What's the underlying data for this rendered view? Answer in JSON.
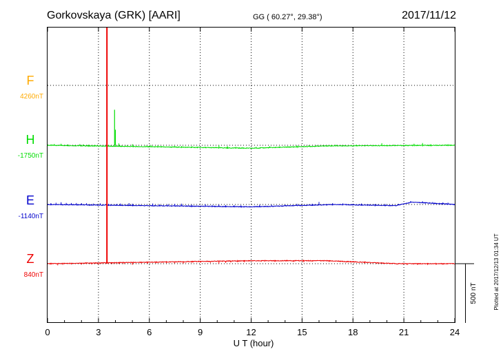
{
  "header": {
    "station": "Gorkovskaya (GRK)  [AARI]",
    "coords": "GG ( 60.27°,  29.38°)",
    "date": "2017/11/12"
  },
  "footer": {
    "plotted": "Plotted at 2017/12/13 01:34 UT"
  },
  "colors": {
    "F": "#ffaa00",
    "H": "#00dd00",
    "E": "#0000cc",
    "Z": "#ee0000",
    "marker": "#ee0000"
  },
  "chart_data": {
    "type": "line",
    "title": "",
    "xlabel": "U T (hour)",
    "ylabel": "",
    "xlim": [
      0,
      24
    ],
    "x_ticks": [
      0,
      3,
      6,
      9,
      12,
      15,
      18,
      21,
      24
    ],
    "x_tick_labels": [
      "0",
      "3",
      "6",
      "9",
      "12",
      "15",
      "18",
      "21",
      "24"
    ],
    "grid": true,
    "scale_bar": {
      "label": "500 nT",
      "value": 500
    },
    "marker_line_hour": 3.5,
    "channels": [
      {
        "name": "F",
        "baseline_label": "4260nT"
      },
      {
        "name": "H",
        "baseline_label": "-1750nT"
      },
      {
        "name": "E",
        "baseline_label": "-1140nT"
      },
      {
        "name": "Z",
        "baseline_label": "840nT"
      }
    ],
    "series": [
      {
        "name": "H",
        "base_shift": [
          [
            0,
            0
          ],
          [
            12,
            -25
          ],
          [
            16.5,
            -5
          ],
          [
            24,
            0
          ]
        ],
        "spikes": [
          [
            0.2,
            8
          ],
          [
            0.4,
            12
          ],
          [
            0.8,
            15
          ],
          [
            1.2,
            10
          ],
          [
            1.9,
            14
          ],
          [
            2.1,
            12
          ],
          [
            2.4,
            10
          ],
          [
            2.8,
            8
          ],
          [
            3.6,
            12
          ],
          [
            4.0,
            140
          ],
          [
            4.2,
            25
          ],
          [
            4.7,
            10
          ],
          [
            5.0,
            20
          ],
          [
            5.8,
            10
          ],
          [
            6.1,
            15
          ],
          [
            6.5,
            12
          ],
          [
            7.5,
            10
          ],
          [
            7.9,
            10
          ],
          [
            8.5,
            8
          ],
          [
            10.1,
            22
          ],
          [
            10.6,
            15
          ],
          [
            11.1,
            10
          ],
          [
            11.5,
            8
          ],
          [
            12.3,
            10
          ],
          [
            13.1,
            12
          ],
          [
            13.7,
            8
          ],
          [
            14.7,
            12
          ],
          [
            15.4,
            10
          ],
          [
            17.0,
            10
          ],
          [
            18.2,
            8
          ],
          [
            19.7,
            20
          ],
          [
            20.4,
            8
          ],
          [
            21.6,
            15
          ],
          [
            22.1,
            20
          ],
          [
            22.6,
            10
          ],
          [
            23.6,
            10
          ]
        ]
      },
      {
        "name": "E",
        "base_shift": [
          [
            0,
            0
          ],
          [
            12,
            -20
          ],
          [
            17,
            0
          ],
          [
            20.5,
            -10
          ],
          [
            21.5,
            20
          ],
          [
            24,
            0
          ]
        ],
        "spikes": [
          [
            0.2,
            12
          ],
          [
            0.5,
            15
          ],
          [
            0.8,
            20
          ],
          [
            1.1,
            15
          ],
          [
            1.4,
            15
          ],
          [
            1.7,
            15
          ],
          [
            2.0,
            15
          ],
          [
            2.3,
            15
          ],
          [
            2.7,
            12
          ],
          [
            3.1,
            15
          ],
          [
            3.6,
            12
          ],
          [
            4.1,
            12
          ],
          [
            4.3,
            15
          ],
          [
            4.8,
            20
          ],
          [
            5.0,
            15
          ],
          [
            6.2,
            18
          ],
          [
            6.6,
            12
          ],
          [
            7.1,
            15
          ],
          [
            7.5,
            18
          ],
          [
            7.9,
            20
          ],
          [
            8.5,
            12
          ],
          [
            9.3,
            18
          ],
          [
            9.7,
            12
          ],
          [
            10.1,
            15
          ],
          [
            10.5,
            12
          ],
          [
            11.0,
            12
          ],
          [
            11.4,
            12
          ],
          [
            12.5,
            15
          ],
          [
            13.2,
            12
          ],
          [
            14.0,
            10
          ],
          [
            14.7,
            15
          ],
          [
            15.6,
            12
          ],
          [
            16.0,
            25
          ],
          [
            16.8,
            12
          ],
          [
            17.4,
            10
          ],
          [
            18.5,
            12
          ],
          [
            19.3,
            10
          ],
          [
            19.9,
            12
          ],
          [
            20.7,
            10
          ],
          [
            21.4,
            12
          ],
          [
            22.1,
            12
          ],
          [
            22.7,
            10
          ],
          [
            23.3,
            12
          ],
          [
            23.6,
            12
          ]
        ]
      },
      {
        "name": "Z",
        "base_shift": [
          [
            0,
            0
          ],
          [
            12,
            25
          ],
          [
            16.5,
            25
          ],
          [
            20.6,
            0
          ],
          [
            24,
            0
          ]
        ],
        "spikes": [
          [
            0.2,
            -8
          ],
          [
            0.6,
            -15
          ],
          [
            0.9,
            -12
          ],
          [
            1.4,
            -10
          ],
          [
            2.0,
            -12
          ],
          [
            2.6,
            -12
          ],
          [
            3.0,
            -15
          ],
          [
            3.8,
            -10
          ],
          [
            4.2,
            -10
          ],
          [
            4.5,
            -12
          ],
          [
            5.0,
            -20
          ],
          [
            5.9,
            -12
          ],
          [
            6.4,
            -10
          ],
          [
            7.0,
            -10
          ],
          [
            7.5,
            -12
          ],
          [
            8.0,
            -15
          ],
          [
            8.5,
            -10
          ],
          [
            9.0,
            -10
          ],
          [
            9.6,
            -12
          ],
          [
            10.1,
            -20
          ],
          [
            10.5,
            -15
          ],
          [
            10.8,
            -12
          ],
          [
            11.2,
            -10
          ],
          [
            11.6,
            -12
          ],
          [
            12.6,
            -8
          ],
          [
            13.4,
            -10
          ],
          [
            14.5,
            -10
          ],
          [
            15.1,
            -12
          ],
          [
            15.6,
            -8
          ],
          [
            16.6,
            5
          ],
          [
            17.6,
            -8
          ],
          [
            18.7,
            -8
          ],
          [
            19.4,
            -8
          ],
          [
            20.6,
            -8
          ],
          [
            21.2,
            -12
          ],
          [
            21.8,
            -10
          ],
          [
            22.4,
            -12
          ],
          [
            22.9,
            -10
          ],
          [
            23.3,
            -8
          ]
        ]
      }
    ],
    "F_spike": {
      "hour": 3.95,
      "offset": 300
    }
  }
}
